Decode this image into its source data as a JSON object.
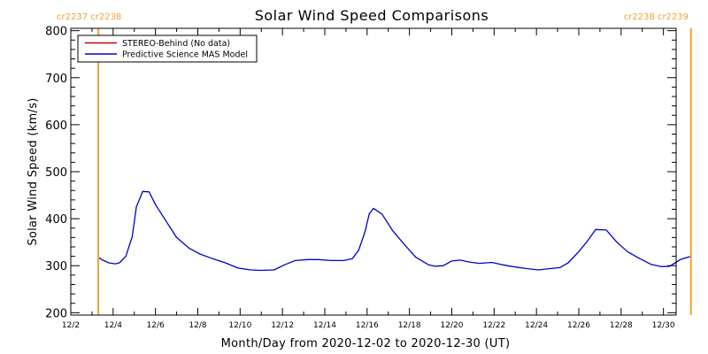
{
  "chart_data": {
    "type": "line",
    "title": "Solar Wind Speed Comparisons",
    "xlabel": "Month/Day from 2020-12-02 to 2020-12-30 (UT)",
    "ylabel": "Solar Wind Speed (km/s)",
    "xlim": [
      0,
      28.6
    ],
    "ylim": [
      195,
      805
    ],
    "yticks": [
      200,
      300,
      400,
      500,
      600,
      700,
      800
    ],
    "xticks": [
      {
        "label": "12/2",
        "day": 0
      },
      {
        "label": "12/4",
        "day": 2
      },
      {
        "label": "12/6",
        "day": 4
      },
      {
        "label": "12/8",
        "day": 6
      },
      {
        "label": "12/10",
        "day": 8
      },
      {
        "label": "12/12",
        "day": 10
      },
      {
        "label": "12/14",
        "day": 12
      },
      {
        "label": "12/16",
        "day": 14
      },
      {
        "label": "12/18",
        "day": 16
      },
      {
        "label": "12/20",
        "day": 18
      },
      {
        "label": "12/22",
        "day": 20
      },
      {
        "label": "12/24",
        "day": 22
      },
      {
        "label": "12/26",
        "day": 24
      },
      {
        "label": "12/28",
        "day": 26
      },
      {
        "label": "12/30",
        "day": 28
      }
    ],
    "legend": {
      "position": "top-left",
      "entries": [
        {
          "label": "STEREO-Behind (No data)",
          "color": "#c00000"
        },
        {
          "label": "Predictive Science MAS Model",
          "color": "#0000cc"
        }
      ]
    },
    "markers": [
      {
        "day": 1.3,
        "left_label": "cr2237",
        "right_label": "cr2238",
        "color": "#f0a030"
      },
      {
        "day": 29.3,
        "left_label": "cr2238",
        "right_label": "cr2239",
        "color": "#f0a030"
      }
    ],
    "series": [
      {
        "name": "Predictive Science MAS Model",
        "color": "#0000cc",
        "x": [
          1.3,
          1.5,
          1.8,
          2.1,
          2.3,
          2.6,
          2.9,
          3.1,
          3.4,
          3.7,
          4.0,
          4.5,
          5.0,
          5.6,
          6.1,
          6.7,
          7.3,
          7.9,
          8.5,
          9.0,
          9.6,
          10.1,
          10.6,
          11.2,
          11.7,
          12.3,
          12.9,
          13.3,
          13.6,
          13.9,
          14.1,
          14.3,
          14.7,
          15.2,
          15.8,
          16.3,
          16.9,
          17.2,
          17.6,
          18.0,
          18.4,
          18.8,
          19.3,
          19.9,
          20.4,
          20.9,
          21.5,
          22.1,
          22.5,
          22.7,
          23.1,
          23.5,
          24.0,
          24.4,
          24.8,
          25.3,
          25.8,
          26.3,
          26.8,
          27.4,
          27.9,
          28.3,
          28.8,
          29.3
        ],
        "y": [
          318,
          312,
          306,
          304,
          306,
          320,
          362,
          425,
          458,
          457,
          430,
          395,
          360,
          337,
          325,
          315,
          306,
          295,
          291,
          290,
          291,
          302,
          311,
          313,
          313,
          311,
          311,
          315,
          333,
          372,
          410,
          422,
          410,
          375,
          343,
          318,
          302,
          299,
          300,
          310,
          312,
          308,
          305,
          307,
          302,
          298,
          294,
          291,
          293,
          294,
          296,
          306,
          330,
          352,
          377,
          376,
          350,
          330,
          317,
          303,
          298,
          299,
          313,
          320
        ]
      }
    ]
  }
}
